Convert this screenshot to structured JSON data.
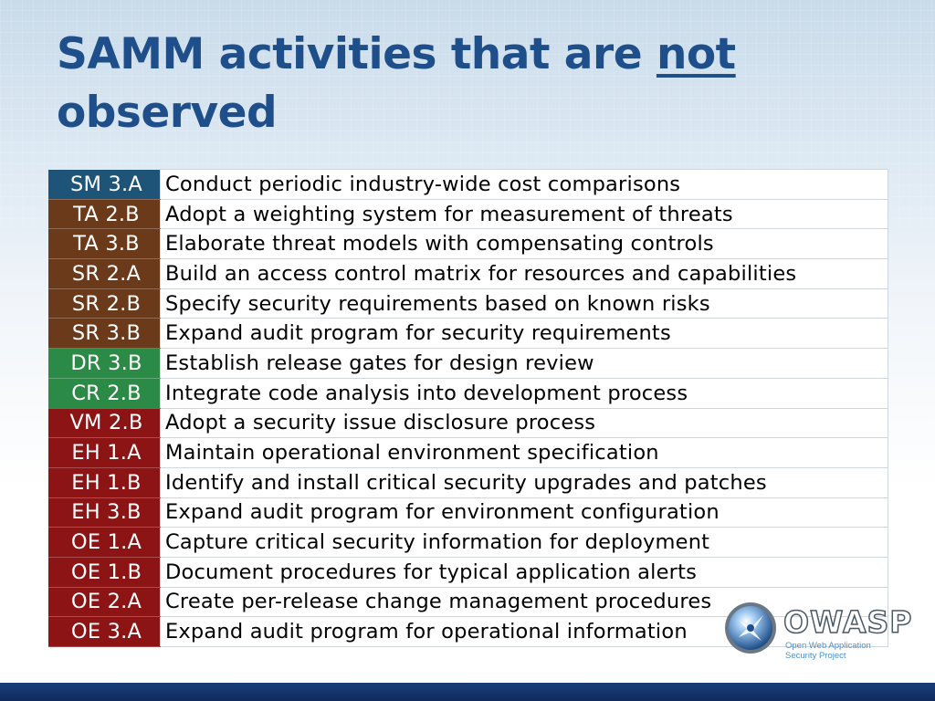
{
  "slide": {
    "title_part1": "SAMM activities that are ",
    "title_underlined": "not",
    "title_part2": "observed"
  },
  "colors": {
    "title": "#1f4f8a",
    "sm": "#1d5478",
    "brown": "#6b3a1a",
    "green": "#2b8a45",
    "red": "#8c1414"
  },
  "rows": [
    {
      "code": "SM 3.A",
      "desc": "Conduct periodic industry-wide cost comparisons",
      "group": "c-sm"
    },
    {
      "code": "TA 2.B",
      "desc": "Adopt a weighting system for measurement of threats",
      "group": "c-br"
    },
    {
      "code": "TA 3.B",
      "desc": "Elaborate threat models with compensating controls",
      "group": "c-br"
    },
    {
      "code": "SR 2.A",
      "desc": "Build an access control matrix for resources and capabilities",
      "group": "c-br"
    },
    {
      "code": "SR 2.B",
      "desc": "Specify security requirements based on known risks",
      "group": "c-br"
    },
    {
      "code": "SR 3.B",
      "desc": "Expand audit program for security requirements",
      "group": "c-br"
    },
    {
      "code": "DR 3.B",
      "desc": "Establish release gates for design review",
      "group": "c-gr"
    },
    {
      "code": "CR 2.B",
      "desc": "Integrate code analysis into development process",
      "group": "c-gr"
    },
    {
      "code": "VM 2.B",
      "desc": "Adopt a security issue disclosure process",
      "group": "c-rd"
    },
    {
      "code": "EH 1.A",
      "desc": "Maintain operational environment specification",
      "group": "c-rd"
    },
    {
      "code": "EH 1.B",
      "desc": "Identify and install critical security upgrades and patches",
      "group": "c-rd"
    },
    {
      "code": "EH 3.B",
      "desc": "Expand audit program for environment configuration",
      "group": "c-rd"
    },
    {
      "code": "OE 1.A",
      "desc": "Capture critical security information for deployment",
      "group": "c-rd"
    },
    {
      "code": "OE 1.B",
      "desc": "Document procedures for typical application alerts",
      "group": "c-rd"
    },
    {
      "code": "OE 2.A",
      "desc": "Create per-release change management procedures",
      "group": "c-rd"
    },
    {
      "code": "OE 3.A",
      "desc": "Expand audit program for operational information",
      "group": "c-rd"
    }
  ],
  "logo": {
    "name": "OWASP",
    "tagline_1": "Open Web Application",
    "tagline_2": "Security Project",
    "icon": "owasp-wasp-icon"
  }
}
